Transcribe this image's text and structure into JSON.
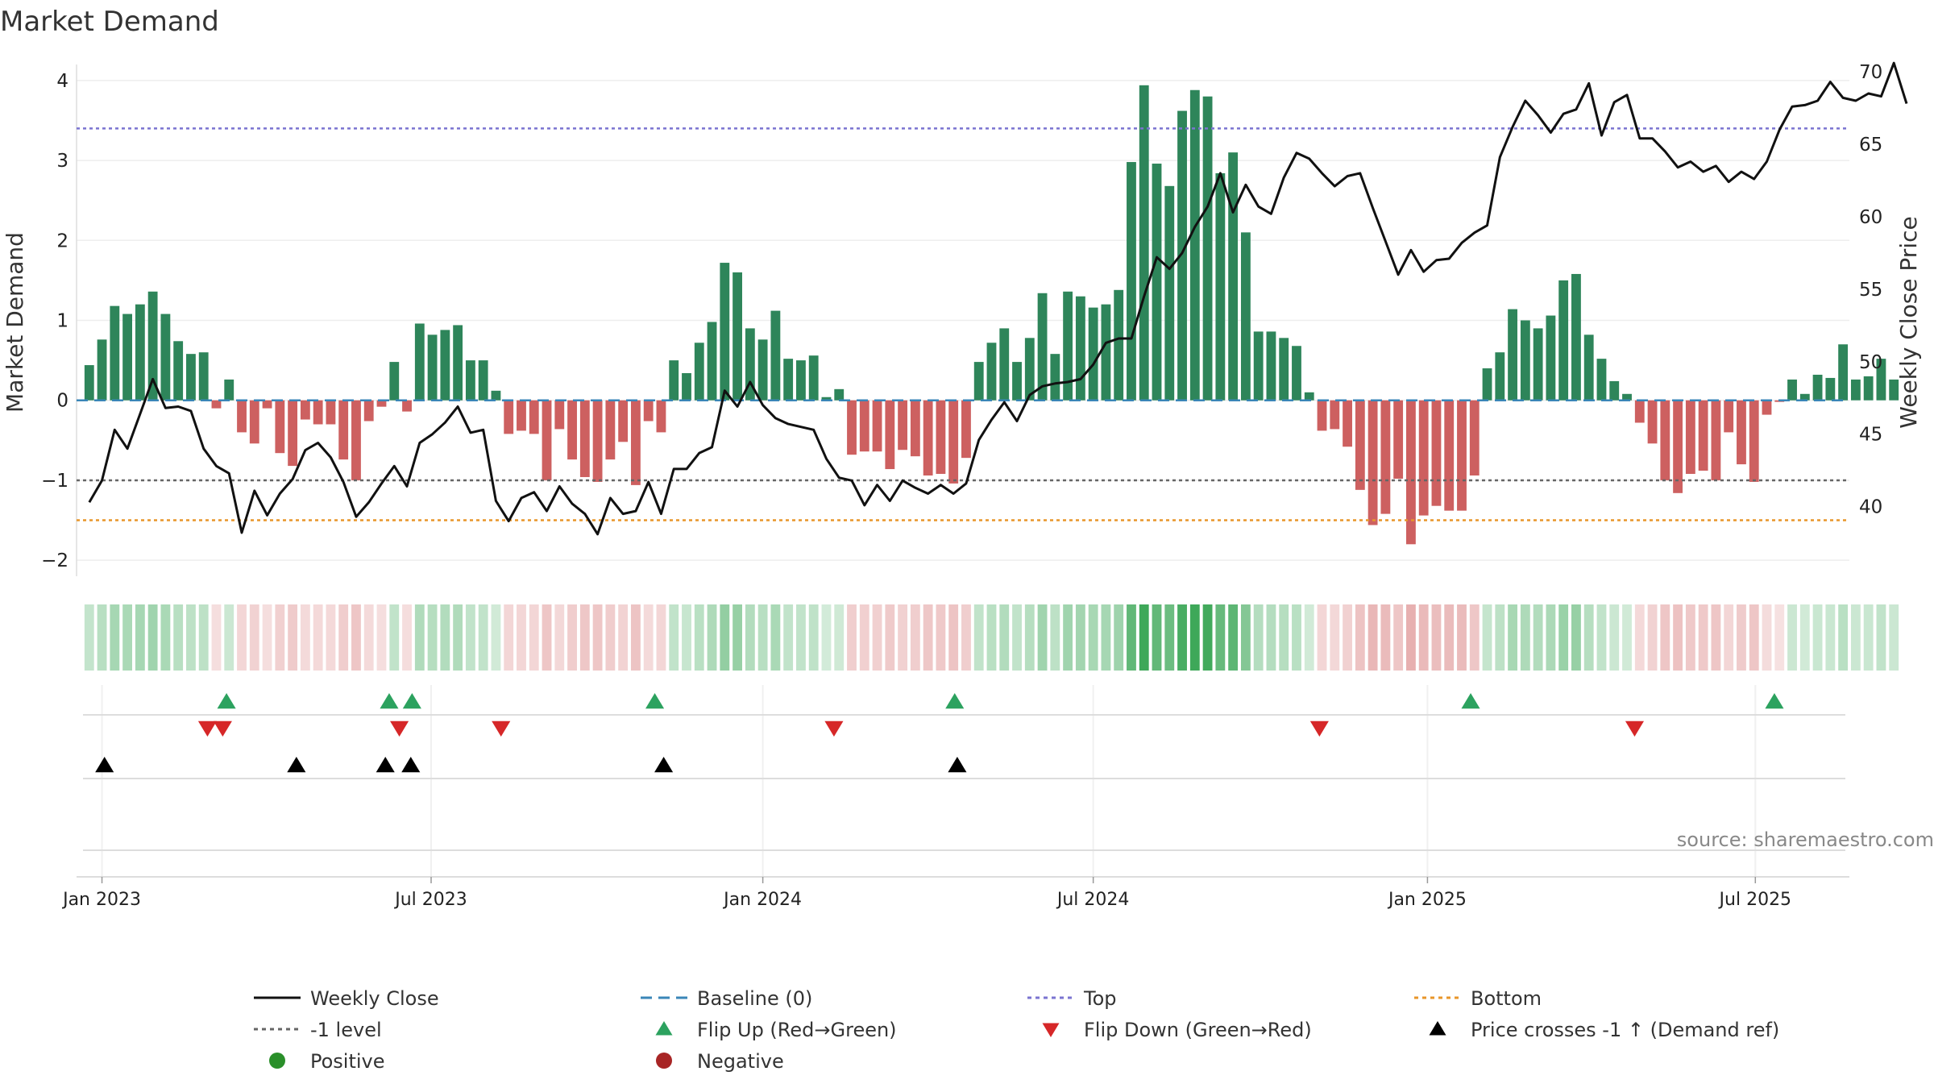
{
  "chart_data": {
    "type": "bar+line",
    "title": "Market Demand",
    "ylabel": "Market Demand",
    "y2label": "Weekly Close Price",
    "ylim": [
      -2.2,
      4.2
    ],
    "y2lim": [
      35.2,
      70.5
    ],
    "yticks": [
      4,
      3,
      2,
      1,
      0,
      -1,
      -2
    ],
    "ytick_labels": [
      "4",
      "3",
      "2",
      "1",
      "0",
      "−1",
      "−2"
    ],
    "y2ticks": [
      70,
      65,
      60,
      55,
      50,
      45,
      40
    ],
    "y2tick_labels": [
      "70",
      "65",
      "60",
      "55",
      "50",
      "45",
      "40"
    ],
    "x_start": "2022-12-26",
    "x_week_range": [
      -1.0,
      138.5
    ],
    "xticks": [
      {
        "label": "Jan 2023",
        "week": 1.0
      },
      {
        "label": "Jul 2023",
        "week": 26.9
      },
      {
        "label": "Jan 2024",
        "week": 53.0
      },
      {
        "label": "Jul 2024",
        "week": 79.0
      },
      {
        "label": "Jan 2025",
        "week": 105.3
      },
      {
        "label": "Jul 2025",
        "week": 131.1
      }
    ],
    "reference_lines": {
      "top": 3.4,
      "bottom": -1.5,
      "minus_one": -1.0,
      "baseline": 0.0
    },
    "demand": [
      0.44,
      0.76,
      1.18,
      1.08,
      1.2,
      1.36,
      1.08,
      0.74,
      0.58,
      0.6,
      -0.1,
      0.26,
      -0.4,
      -0.54,
      -0.1,
      -0.66,
      -0.82,
      -0.24,
      -0.3,
      -0.3,
      -0.74,
      -1.0,
      -0.26,
      -0.08,
      0.48,
      -0.14,
      0.96,
      0.82,
      0.88,
      0.94,
      0.5,
      0.5,
      0.12,
      -0.42,
      -0.38,
      -0.42,
      -1.0,
      -0.36,
      -0.74,
      -0.96,
      -1.02,
      -0.74,
      -0.52,
      -1.06,
      -0.26,
      -0.4,
      0.5,
      0.34,
      0.72,
      0.98,
      1.72,
      1.6,
      0.9,
      0.76,
      1.12,
      0.52,
      0.5,
      0.56,
      0.04,
      0.14,
      -0.68,
      -0.64,
      -0.64,
      -0.86,
      -0.62,
      -0.7,
      -0.94,
      -0.92,
      -1.04,
      -0.72,
      0.48,
      0.72,
      0.9,
      0.48,
      0.78,
      1.34,
      0.58,
      1.36,
      1.3,
      1.16,
      1.2,
      1.38,
      2.98,
      3.94,
      2.96,
      2.68,
      3.62,
      3.88,
      3.8,
      2.84,
      3.1,
      2.1,
      0.86,
      0.86,
      0.78,
      0.68,
      0.1,
      -0.38,
      -0.36,
      -0.58,
      -1.12,
      -1.56,
      -1.42,
      -0.98,
      -1.8,
      -1.44,
      -1.32,
      -1.38,
      -1.38,
      -0.94,
      0.4,
      0.6,
      1.14,
      1.0,
      0.9,
      1.06,
      1.5,
      1.58,
      0.82,
      0.52,
      0.24,
      0.08,
      -0.28,
      -0.54,
      -1.0,
      -1.16,
      -0.92,
      -0.88,
      -1.0,
      -0.4,
      -0.8,
      -1.02,
      -0.18,
      -0.02,
      0.26,
      0.08,
      0.32,
      0.28,
      0.7,
      0.26,
      0.3,
      0.52,
      0.26
    ],
    "weekly_close": [
      40.3,
      41.8,
      45.3,
      44.0,
      46.4,
      48.8,
      46.8,
      46.9,
      46.6,
      44.0,
      42.8,
      42.3,
      38.2,
      41.1,
      39.4,
      40.9,
      41.9,
      43.9,
      44.4,
      43.4,
      41.7,
      39.3,
      40.3,
      41.6,
      42.8,
      41.4,
      44.4,
      45.0,
      45.8,
      46.9,
      45.1,
      45.3,
      40.4,
      39.0,
      40.6,
      41.0,
      39.7,
      41.4,
      40.2,
      39.5,
      38.1,
      40.6,
      39.5,
      39.7,
      41.7,
      39.5,
      42.6,
      42.6,
      43.7,
      44.1,
      48.0,
      46.9,
      48.6,
      47.0,
      46.1,
      45.7,
      45.5,
      45.3,
      43.3,
      42.0,
      41.8,
      40.1,
      41.5,
      40.4,
      41.8,
      41.3,
      40.9,
      41.5,
      40.9,
      41.6,
      44.6,
      46.0,
      47.2,
      45.9,
      47.7,
      48.3,
      48.5,
      48.6,
      48.8,
      49.8,
      51.3,
      51.6,
      51.6,
      54.5,
      57.2,
      56.4,
      57.5,
      59.3,
      60.7,
      63.0,
      60.3,
      62.2,
      60.7,
      60.2,
      62.7,
      64.4,
      64.0,
      63.0,
      62.1,
      62.8,
      63.0,
      60.6,
      58.3,
      56.0,
      57.7,
      56.2,
      57.0,
      57.1,
      58.2,
      58.9,
      59.4,
      64.1,
      66.2,
      68.0,
      67.0,
      65.8,
      67.1,
      67.4,
      69.2,
      65.6,
      67.9,
      68.4,
      65.4,
      65.4,
      64.5,
      63.4,
      63.8,
      63.1,
      63.5,
      62.4,
      63.1,
      62.6,
      63.8,
      66.0,
      67.6,
      67.7,
      68.0,
      69.3,
      68.2,
      68.0,
      68.5,
      68.3,
      70.6,
      67.8
    ],
    "flip_up_weeks": [
      10.8,
      23.6,
      25.4,
      44.5,
      68.1,
      108.7,
      132.6
    ],
    "flip_down_weeks": [
      9.3,
      10.5,
      24.4,
      32.4,
      58.6,
      96.8,
      121.6
    ],
    "price_cross_weeks": [
      1.2,
      16.3,
      23.3,
      25.3,
      45.2,
      68.3
    ],
    "legend": [
      {
        "label": "Weekly Close",
        "marker": "solid-line",
        "color": "#111111"
      },
      {
        "label": "Baseline (0)",
        "marker": "dashed-line",
        "color": "#3a86b8"
      },
      {
        "label": "Top",
        "marker": "dotted-line",
        "color": "#7b74d1"
      },
      {
        "label": "Bottom",
        "marker": "dotted-line",
        "color": "#e8962a"
      },
      {
        "label": "-1 level",
        "marker": "dotted-line",
        "color": "#666666"
      },
      {
        "label": "Flip Up (Red→Green)",
        "marker": "triangle-up",
        "color": "#2ca25f"
      },
      {
        "label": "Flip Down (Green→Red)",
        "marker": "triangle-down",
        "color": "#d62728"
      },
      {
        "label": "Price crosses -1 ↑ (Demand ref)",
        "marker": "triangle-up",
        "color": "#000000"
      },
      {
        "label": "Positive",
        "marker": "circle",
        "color": "#2a8f2a"
      },
      {
        "label": "Negative",
        "marker": "circle",
        "color": "#a82525"
      }
    ],
    "source_label": "source: sharemaestro.com",
    "colors": {
      "positive_bar": "#2e855a",
      "negative_bar": "#cd6060",
      "heat_green": "#3ea859",
      "heat_red": "#d67777"
    }
  }
}
